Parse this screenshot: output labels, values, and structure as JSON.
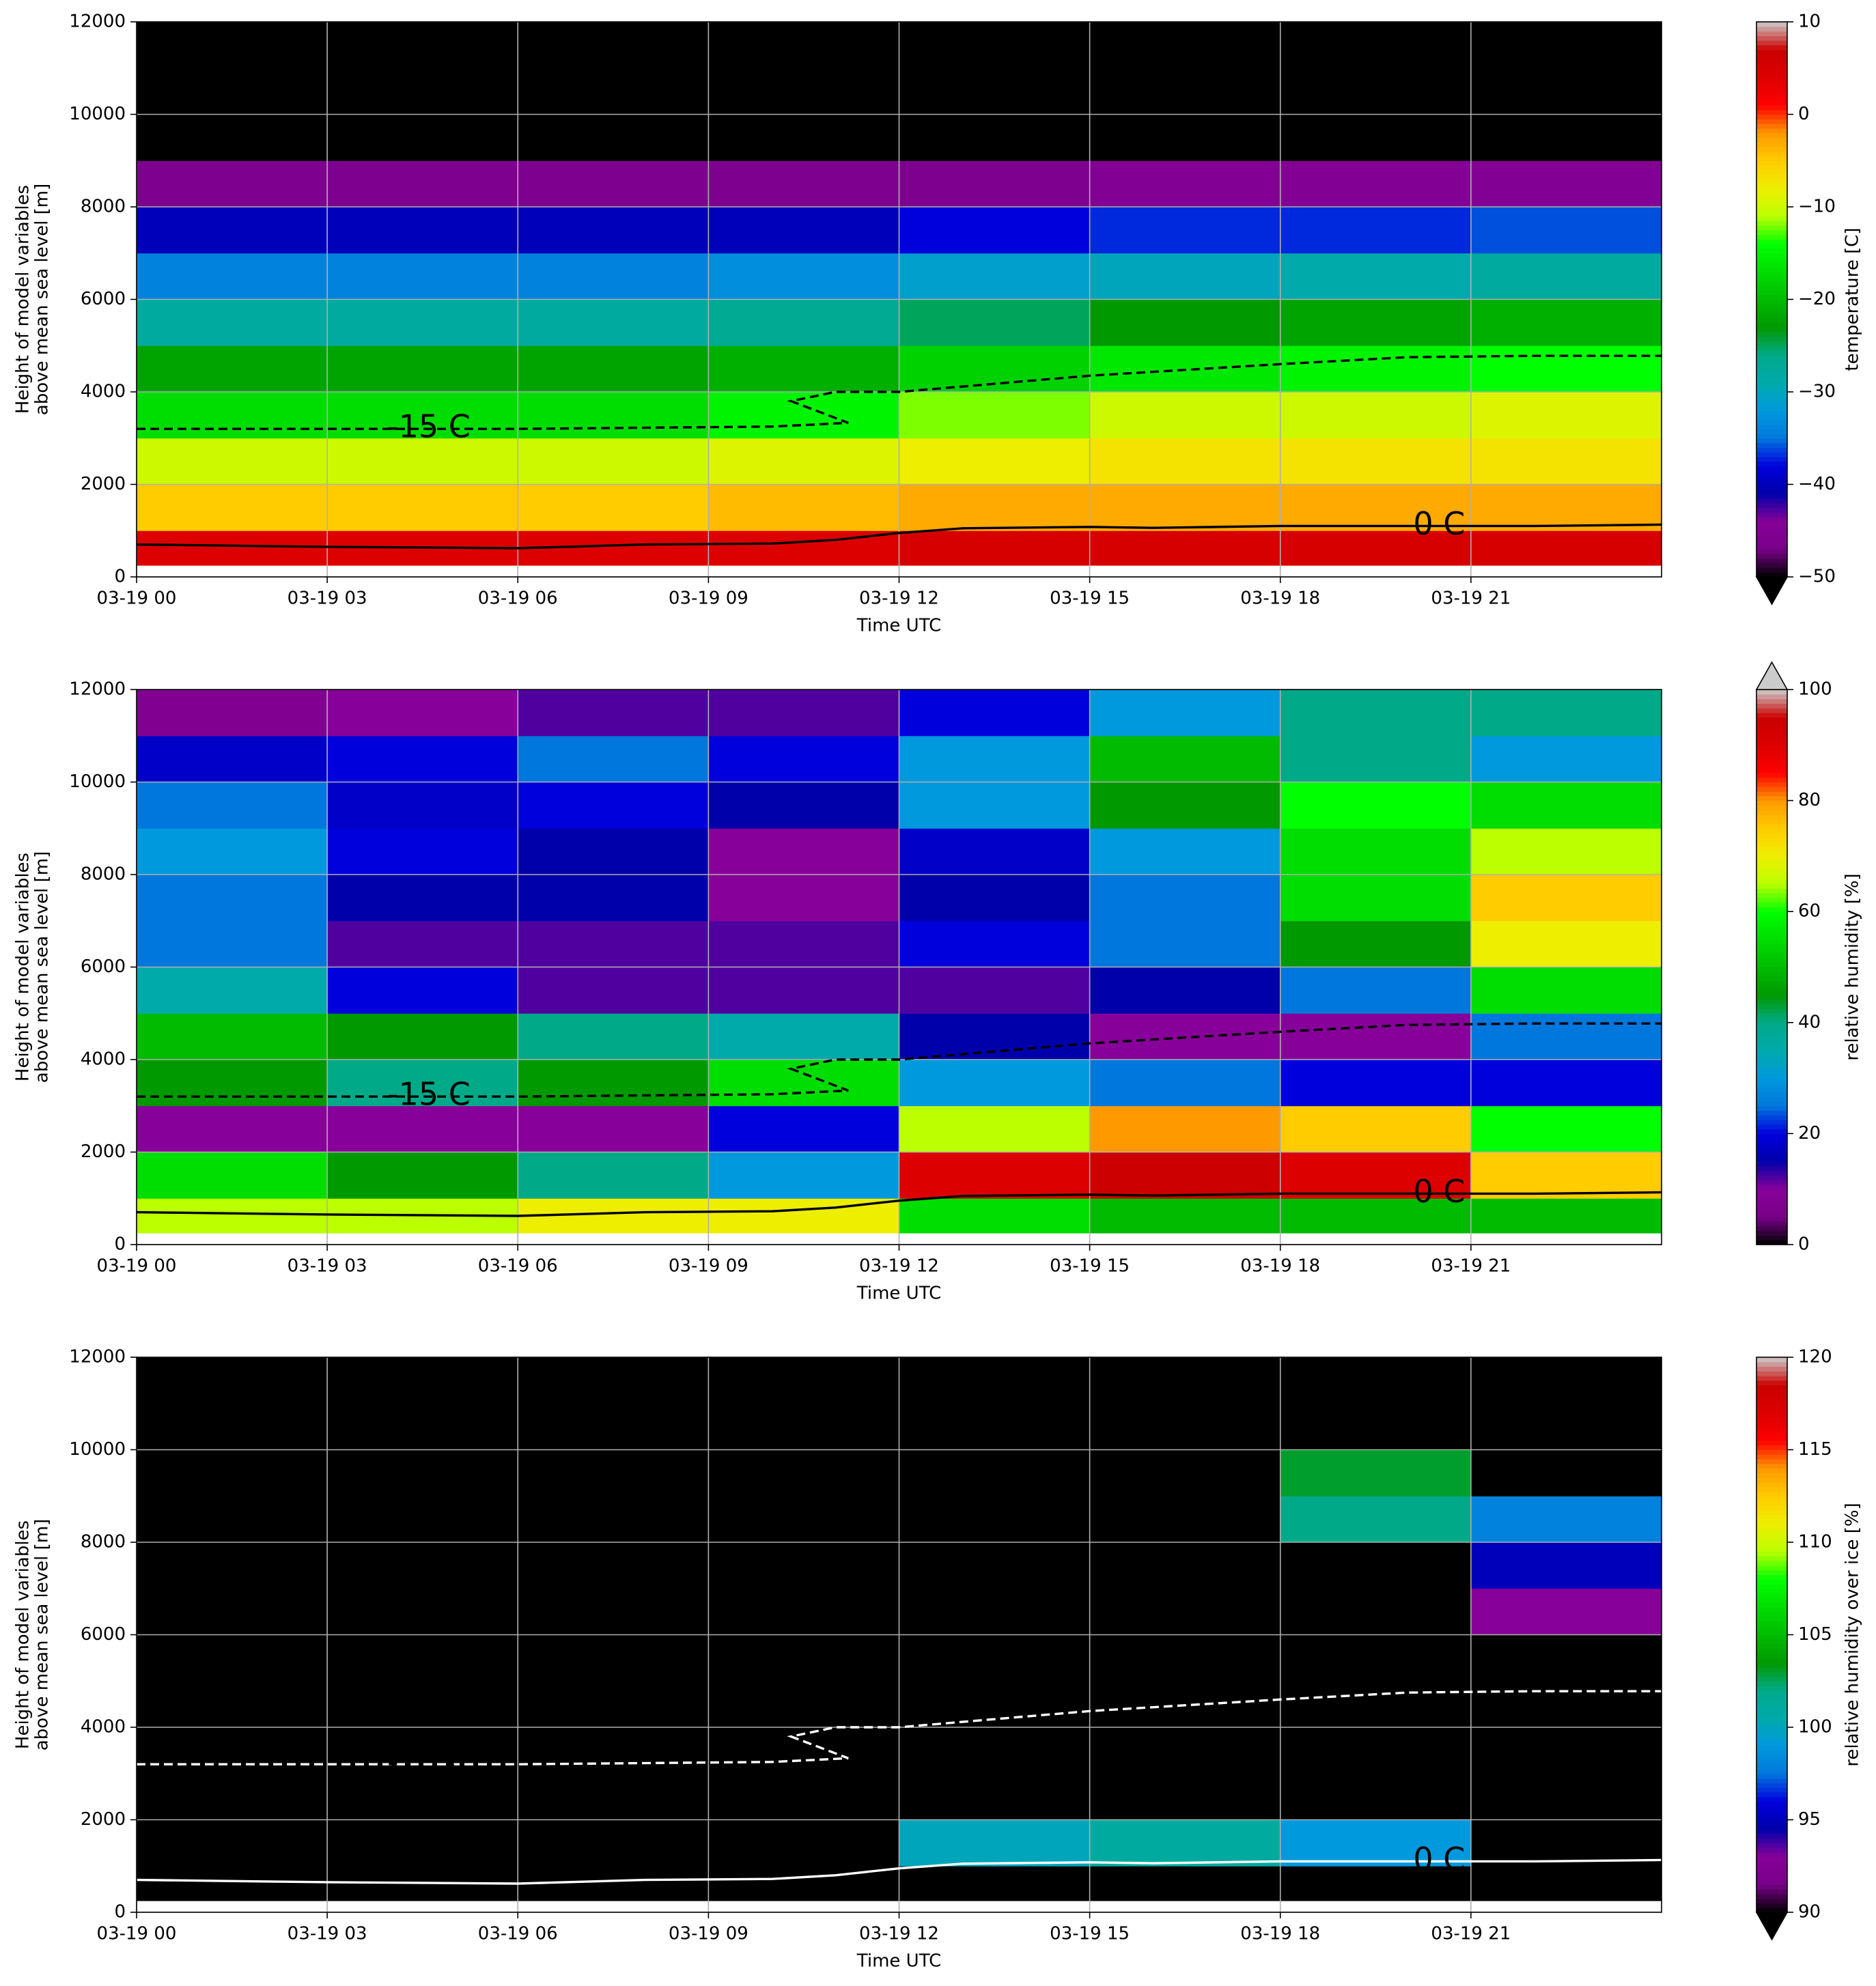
{
  "chart_data": [
    {
      "type": "heatmap",
      "xlabel": "Time UTC",
      "ylabel": [
        "Height of model variables",
        "above mean sea level [m]"
      ],
      "colorbar_label": "temperature [C]",
      "xlim": [
        0,
        24
      ],
      "ylim": [
        0,
        12000
      ],
      "xticks": [
        {
          "value": 0,
          "label": "03-19 00"
        },
        {
          "value": 3,
          "label": "03-19 03"
        },
        {
          "value": 6,
          "label": "03-19 06"
        },
        {
          "value": 9,
          "label": "03-19 09"
        },
        {
          "value": 12,
          "label": "03-19 12"
        },
        {
          "value": 15,
          "label": "03-19 15"
        },
        {
          "value": 18,
          "label": "03-19 18"
        },
        {
          "value": 21,
          "label": "03-19 21"
        }
      ],
      "yticks": [
        0,
        2000,
        4000,
        6000,
        8000,
        10000,
        12000
      ],
      "grid": true,
      "x_edges": [
        0,
        3,
        6,
        9,
        12,
        15,
        18,
        21,
        24
      ],
      "y_edges": [
        250,
        1000,
        2000,
        3000,
        4000,
        5000,
        6000,
        7000,
        8000,
        9000,
        10000,
        11000,
        12000
      ],
      "z": [
        [
          4,
          4,
          4,
          4,
          5,
          5,
          5,
          5
        ],
        [
          -5,
          -5,
          -5,
          -4,
          -3,
          -3,
          -3,
          -3
        ],
        [
          -10,
          -10,
          -10,
          -9,
          -8,
          -7,
          -7,
          -7
        ],
        [
          -17,
          -17,
          -17,
          -15,
          -12,
          -10,
          -10,
          -9
        ],
        [
          -22,
          -22,
          -22,
          -21,
          -18,
          -16,
          -15,
          -14
        ],
        [
          -28,
          -28,
          -28,
          -27,
          -25,
          -23,
          -22,
          -21
        ],
        [
          -34,
          -34,
          -34,
          -33,
          -31,
          -30,
          -29,
          -28
        ],
        [
          -40,
          -40,
          -40,
          -40,
          -38,
          -37,
          -37,
          -36
        ],
        [
          -46,
          -46,
          -46,
          -46,
          -46,
          -45,
          -45,
          -45
        ],
        [
          -56,
          -56,
          -56,
          -56,
          -56,
          -56,
          -56,
          -56
        ],
        [
          -58,
          -58,
          -58,
          -58,
          -58,
          -58,
          -58,
          -58
        ],
        [
          -52,
          -56,
          -58,
          -58,
          -58,
          -58,
          -58,
          -58
        ]
      ],
      "clim": [
        -50,
        10
      ],
      "cticks": [
        {
          "value": -50,
          "label": "−50"
        },
        {
          "value": -40,
          "label": "−40"
        },
        {
          "value": -30,
          "label": "−30"
        },
        {
          "value": -20,
          "label": "−20"
        },
        {
          "value": -10,
          "label": "−10"
        },
        0,
        10
      ],
      "extend": "min",
      "colormap": [
        "#000000",
        "#780088",
        "#870099",
        "#0000aa",
        "#0000dd",
        "#0077dd",
        "#0099dd",
        "#00aaaa",
        "#00aa88",
        "#009900",
        "#00bb00",
        "#00dd00",
        "#00ff00",
        "#bbff00",
        "#eeee00",
        "#ffcc00",
        "#ff9900",
        "#ff0000",
        "#dd0000",
        "#cc0000",
        "#cccccc"
      ],
      "contour_color": "#000000",
      "contours": [
        {
          "name": "0 C",
          "dashed": false,
          "x": [
            0,
            3,
            6,
            8,
            10,
            11,
            12,
            13,
            15,
            16,
            18,
            20,
            22,
            24
          ],
          "y": [
            700,
            650,
            620,
            700,
            720,
            800,
            950,
            1050,
            1080,
            1060,
            1100,
            1100,
            1100,
            1130
          ]
        },
        {
          "name": "-15 C",
          "dashed": true,
          "x": [
            0,
            6,
            10,
            11.2,
            10.3,
            11,
            12,
            15,
            18,
            20,
            22,
            24
          ],
          "y": [
            3200,
            3200,
            3250,
            3330,
            3800,
            4000,
            4000,
            4350,
            4600,
            4750,
            4780,
            4780
          ]
        }
      ]
    },
    {
      "type": "heatmap",
      "xlabel": "Time UTC",
      "ylabel": [
        "Height of model variables",
        "above mean sea level [m]"
      ],
      "colorbar_label": "relative humidity [%]",
      "xlim": [
        0,
        24
      ],
      "ylim": [
        0,
        12000
      ],
      "xticks": [
        {
          "value": 0,
          "label": "03-19 00"
        },
        {
          "value": 3,
          "label": "03-19 03"
        },
        {
          "value": 6,
          "label": "03-19 06"
        },
        {
          "value": 9,
          "label": "03-19 09"
        },
        {
          "value": 12,
          "label": "03-19 12"
        },
        {
          "value": 15,
          "label": "03-19 15"
        },
        {
          "value": 18,
          "label": "03-19 18"
        },
        {
          "value": 21,
          "label": "03-19 21"
        }
      ],
      "yticks": [
        0,
        2000,
        4000,
        6000,
        8000,
        10000,
        12000
      ],
      "grid": true,
      "x_edges": [
        0,
        3,
        6,
        9,
        12,
        15,
        18,
        21,
        24
      ],
      "y_edges": [
        250,
        1000,
        2000,
        3000,
        4000,
        5000,
        6000,
        7000,
        8000,
        9000,
        10000,
        11000,
        12000
      ],
      "z": [
        [
          65,
          65,
          70,
          70,
          55,
          50,
          50,
          50
        ],
        [
          55,
          45,
          40,
          30,
          90,
          95,
          90,
          75
        ],
        [
          10,
          10,
          10,
          20,
          65,
          80,
          75,
          60
        ],
        [
          45,
          40,
          45,
          55,
          30,
          25,
          20,
          20
        ],
        [
          50,
          45,
          40,
          35,
          15,
          10,
          10,
          25
        ],
        [
          35,
          20,
          12,
          12,
          12,
          15,
          25,
          55
        ],
        [
          25,
          12,
          12,
          12,
          20,
          25,
          45,
          70
        ],
        [
          25,
          15,
          15,
          10,
          15,
          25,
          55,
          75
        ],
        [
          30,
          20,
          15,
          10,
          18,
          30,
          55,
          65
        ],
        [
          25,
          18,
          20,
          15,
          30,
          45,
          60,
          55
        ],
        [
          18,
          20,
          25,
          20,
          30,
          50,
          40,
          30
        ],
        [
          8,
          10,
          12,
          12,
          20,
          30,
          40,
          40
        ]
      ],
      "clim": [
        0,
        100
      ],
      "cticks": [
        0,
        20,
        40,
        60,
        80,
        100
      ],
      "extend": "max",
      "colormap": [
        "#000000",
        "#780088",
        "#870099",
        "#0000aa",
        "#0000dd",
        "#0077dd",
        "#0099dd",
        "#00aaaa",
        "#00aa88",
        "#009900",
        "#00bb00",
        "#00dd00",
        "#00ff00",
        "#bbff00",
        "#eeee00",
        "#ffcc00",
        "#ff9900",
        "#ff0000",
        "#dd0000",
        "#cc0000",
        "#cccccc"
      ],
      "contour_color": "#000000",
      "contours": [
        {
          "name": "0 C",
          "dashed": false,
          "x": [
            0,
            3,
            6,
            8,
            10,
            11,
            12,
            13,
            15,
            16,
            18,
            20,
            22,
            24
          ],
          "y": [
            700,
            650,
            620,
            700,
            720,
            800,
            950,
            1050,
            1080,
            1060,
            1100,
            1100,
            1100,
            1130
          ]
        },
        {
          "name": "-15 C",
          "dashed": true,
          "x": [
            0,
            6,
            10,
            11.2,
            10.3,
            11,
            12,
            15,
            18,
            20,
            22,
            24
          ],
          "y": [
            3200,
            3200,
            3250,
            3330,
            3800,
            4000,
            4000,
            4350,
            4600,
            4750,
            4780,
            4780
          ]
        }
      ]
    },
    {
      "type": "heatmap",
      "xlabel": "Time UTC",
      "ylabel": [
        "Height of model variables",
        "above mean sea level [m]"
      ],
      "colorbar_label": "relative humidity over ice [%]",
      "xlim": [
        0,
        24
      ],
      "ylim": [
        0,
        12000
      ],
      "xticks": [
        {
          "value": 0,
          "label": "03-19 00"
        },
        {
          "value": 3,
          "label": "03-19 03"
        },
        {
          "value": 6,
          "label": "03-19 06"
        },
        {
          "value": 9,
          "label": "03-19 09"
        },
        {
          "value": 12,
          "label": "03-19 12"
        },
        {
          "value": 15,
          "label": "03-19 15"
        },
        {
          "value": 18,
          "label": "03-19 18"
        },
        {
          "value": 21,
          "label": "03-19 21"
        }
      ],
      "yticks": [
        0,
        2000,
        4000,
        6000,
        8000,
        10000,
        12000
      ],
      "grid": true,
      "x_edges": [
        0,
        3,
        6,
        9,
        12,
        15,
        18,
        21,
        24
      ],
      "y_edges": [
        250,
        1000,
        2000,
        3000,
        4000,
        5000,
        6000,
        7000,
        8000,
        9000,
        10000,
        11000,
        12000
      ],
      "z": [
        [
          80,
          80,
          80,
          80,
          80,
          80,
          80,
          80
        ],
        [
          80,
          80,
          80,
          80,
          100,
          101,
          99,
          80
        ],
        [
          80,
          80,
          80,
          80,
          80,
          80,
          80,
          80
        ],
        [
          80,
          80,
          80,
          80,
          80,
          80,
          80,
          80
        ],
        [
          80,
          80,
          80,
          80,
          80,
          80,
          80,
          80
        ],
        [
          80,
          80,
          80,
          80,
          80,
          80,
          80,
          80
        ],
        [
          80,
          80,
          80,
          80,
          80,
          80,
          80,
          93
        ],
        [
          80,
          80,
          80,
          80,
          80,
          80,
          80,
          95
        ],
        [
          80,
          80,
          80,
          80,
          80,
          80,
          102,
          98
        ],
        [
          80,
          80,
          80,
          80,
          80,
          80,
          103,
          80
        ],
        [
          80,
          80,
          80,
          80,
          80,
          80,
          80,
          80
        ],
        [
          80,
          80,
          80,
          80,
          80,
          80,
          80,
          80
        ]
      ],
      "clim": [
        90,
        120
      ],
      "cticks": [
        90,
        95,
        100,
        105,
        110,
        115,
        120
      ],
      "extend": "min",
      "colormap": [
        "#000000",
        "#780088",
        "#870099",
        "#0000aa",
        "#0000dd",
        "#0077dd",
        "#0099dd",
        "#00aaaa",
        "#00aa88",
        "#009900",
        "#00bb00",
        "#00dd00",
        "#00ff00",
        "#bbff00",
        "#eeee00",
        "#ffcc00",
        "#ff9900",
        "#ff0000",
        "#dd0000",
        "#cc0000",
        "#cccccc"
      ],
      "contour_color": "#ffffff",
      "contours": [
        {
          "name": "0 C",
          "dashed": false,
          "x": [
            0,
            3,
            6,
            8,
            10,
            11,
            12,
            13,
            15,
            16,
            18,
            20,
            22,
            24
          ],
          "y": [
            700,
            650,
            620,
            700,
            720,
            800,
            950,
            1050,
            1080,
            1060,
            1100,
            1100,
            1100,
            1130
          ]
        },
        {
          "name": "-15 C",
          "dashed": true,
          "x": [
            0,
            6,
            10,
            11.2,
            10.3,
            11,
            12,
            15,
            18,
            20,
            22,
            24
          ],
          "y": [
            3200,
            3200,
            3250,
            3330,
            3800,
            4000,
            4000,
            4350,
            4600,
            4750,
            4780,
            4780
          ]
        }
      ]
    }
  ]
}
